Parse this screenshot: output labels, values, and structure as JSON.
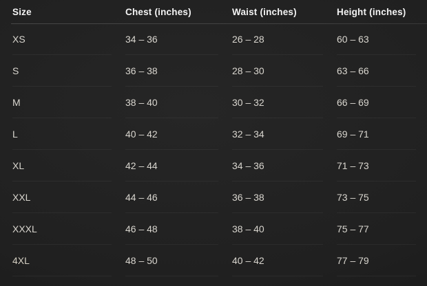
{
  "colors": {
    "background": "#1f1f1f",
    "header_text": "#f3f3f3",
    "cell_text": "#d9d6cf",
    "header_rule": "#454545",
    "row_divider": "rgba(255,255,255,0.05)",
    "accent_4xl_gold": "#c79f3e"
  },
  "table": {
    "columns": [
      "Size",
      "Chest (inches)",
      "Waist (inches)",
      "Height (inches)"
    ],
    "rows": [
      {
        "size": "XS",
        "chest": "34 – 36",
        "waist": "26 – 28",
        "height": "60 – 63"
      },
      {
        "size": "S",
        "chest": "36 – 38",
        "waist": "28 – 30",
        "height": "63 – 66"
      },
      {
        "size": "M",
        "chest": "38 – 40",
        "waist": "30 – 32",
        "height": "66 – 69"
      },
      {
        "size": "L",
        "chest": "40 – 42",
        "waist": "32 – 34",
        "height": "69 – 71"
      },
      {
        "size": "XL",
        "chest": "42 – 44",
        "waist": "34 – 36",
        "height": "71 – 73"
      },
      {
        "size": "XXL",
        "chest": "44 – 46",
        "waist": "36 – 38",
        "height": "73 – 75"
      },
      {
        "size": "XXXL",
        "chest": "46 – 48",
        "waist": "38 – 40",
        "height": "75 – 77"
      },
      {
        "size": "4XL",
        "chest": "48 – 50",
        "waist": "40 – 42",
        "height": "77 – 79"
      }
    ]
  },
  "chart_data": {
    "type": "table",
    "columns": [
      "Size",
      "Chest (inches)",
      "Waist (inches)",
      "Height (inches)"
    ],
    "rows": [
      [
        "XS",
        "34 – 36",
        "26 – 28",
        "60 – 63"
      ],
      [
        "S",
        "36 – 38",
        "28 – 30",
        "63 – 66"
      ],
      [
        "M",
        "38 – 40",
        "30 – 32",
        "66 – 69"
      ],
      [
        "L",
        "40 – 42",
        "32 – 34",
        "69 – 71"
      ],
      [
        "XL",
        "42 – 44",
        "34 – 36",
        "71 – 73"
      ],
      [
        "XXL",
        "44 – 46",
        "36 – 38",
        "73 – 75"
      ],
      [
        "XXXL",
        "46 – 48",
        "38 – 40",
        "75 – 77"
      ],
      [
        "4XL",
        "48 – 50",
        "40 – 42",
        "77 – 79"
      ]
    ],
    "chest_ranges": [
      [
        34,
        36
      ],
      [
        36,
        38
      ],
      [
        38,
        40
      ],
      [
        40,
        42
      ],
      [
        42,
        44
      ],
      [
        44,
        46
      ],
      [
        46,
        48
      ],
      [
        48,
        50
      ]
    ],
    "waist_ranges": [
      [
        26,
        28
      ],
      [
        28,
        30
      ],
      [
        30,
        32
      ],
      [
        32,
        34
      ],
      [
        34,
        36
      ],
      [
        36,
        38
      ],
      [
        38,
        40
      ],
      [
        40,
        42
      ]
    ],
    "height_ranges": [
      [
        60,
        63
      ],
      [
        63,
        66
      ],
      [
        66,
        69
      ],
      [
        69,
        71
      ],
      [
        71,
        73
      ],
      [
        73,
        75
      ],
      [
        75,
        77
      ],
      [
        77,
        79
      ]
    ],
    "units": "inches",
    "layout": "dark background, bold header row with full-width rule, faint per-cell row dividers"
  }
}
